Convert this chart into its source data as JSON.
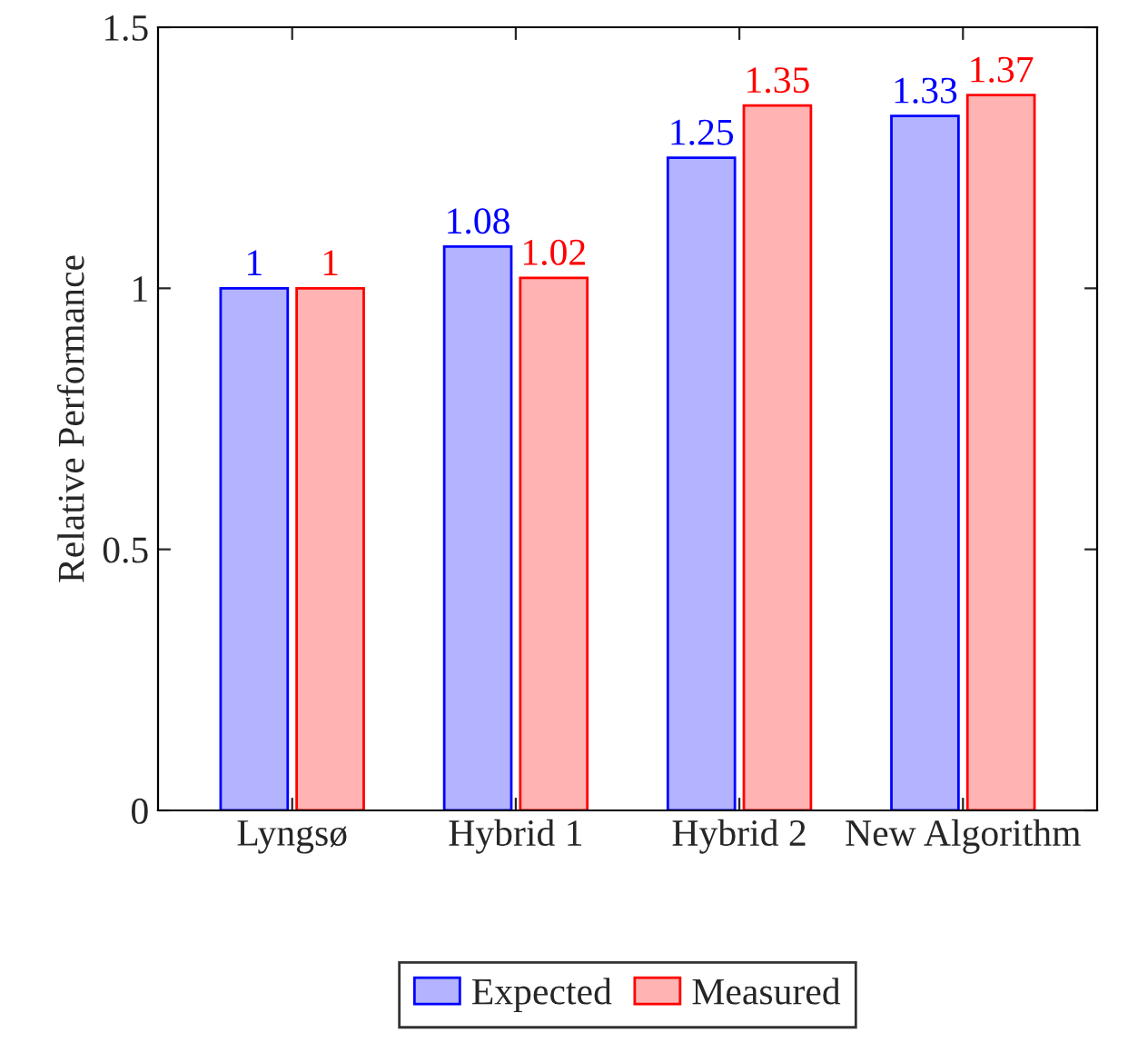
{
  "chart_data": {
    "type": "bar",
    "ylabel": "Relative Performance",
    "categories": [
      "Lyngsø",
      "Hybrid 1",
      "Hybrid 2",
      "New Algorithm"
    ],
    "series": [
      {
        "name": "Expected",
        "color": "#b3b3ff",
        "values": [
          1,
          1.08,
          1.25,
          1.33
        ]
      },
      {
        "name": "Measured",
        "color": "#ffb3b3",
        "values": [
          1,
          1.02,
          1.35,
          1.37
        ]
      }
    ],
    "ylim": [
      0,
      1.5
    ],
    "yticks": [
      0,
      0.5,
      1,
      1.5
    ],
    "data_labels": true,
    "legend": "bottom",
    "grid": false
  }
}
